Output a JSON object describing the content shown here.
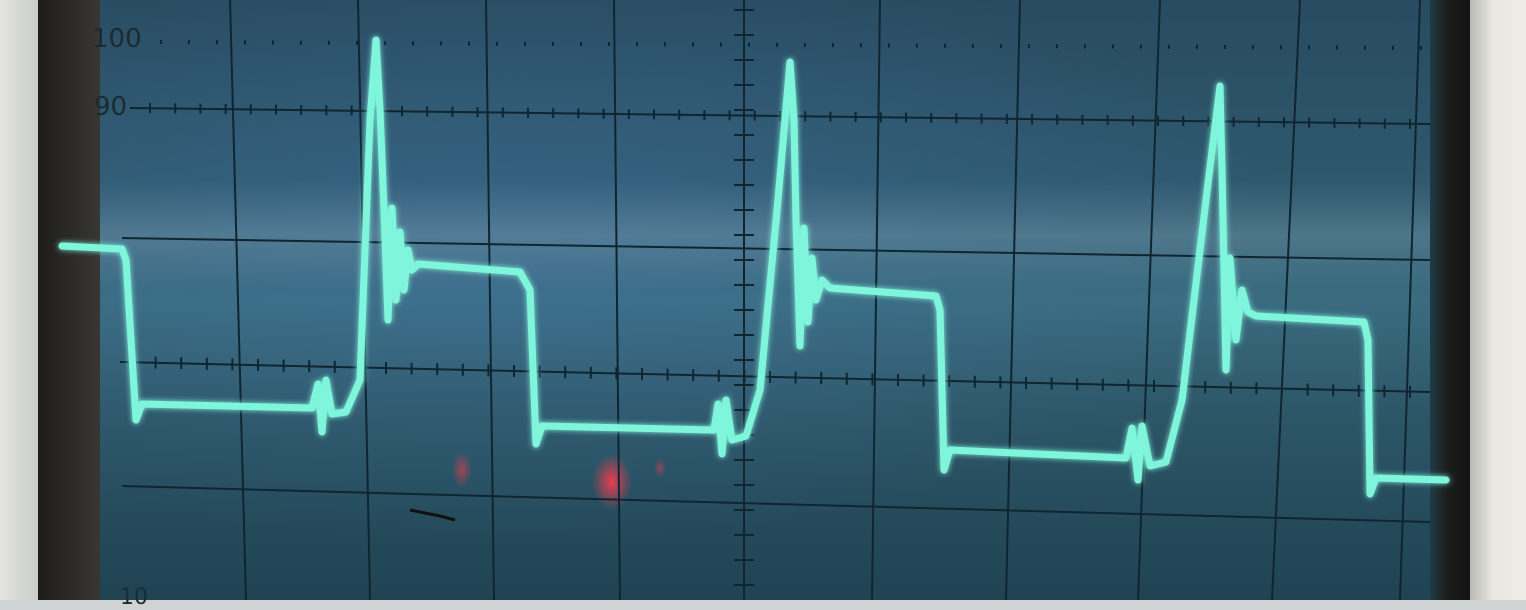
{
  "graticule_labels": {
    "top": "100",
    "upper": "90",
    "bottom": "10"
  },
  "colors": {
    "trace": "#7ff5dc",
    "trace_glow": "#3fe0c0",
    "grid": "#0f2530",
    "screen": "#2f5a70",
    "red_glare": "#ff3040"
  },
  "scene": {
    "pulse_count": 3,
    "overshoot_level_percent": [
      100,
      97,
      93
    ]
  }
}
